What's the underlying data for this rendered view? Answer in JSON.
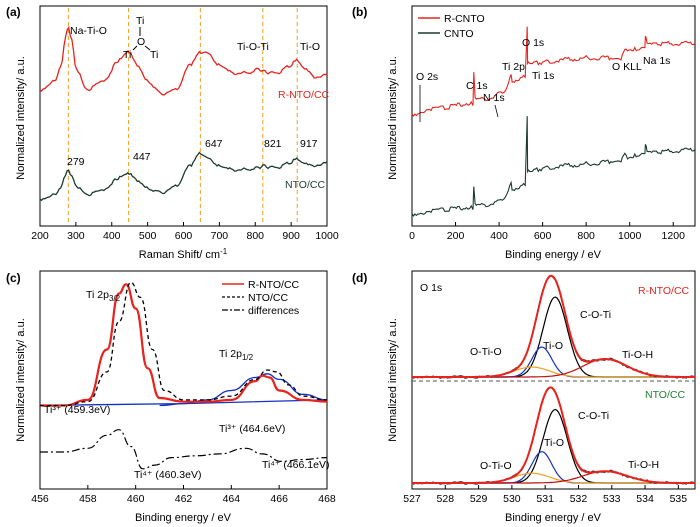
{
  "colors": {
    "red": "#e8231d",
    "dark": "#1c3a2e",
    "orange": "#f0a020",
    "blue": "#1830c0",
    "lightred": "#ff4040",
    "darkred": "#c01010"
  },
  "panels": {
    "a": "(a)",
    "b": "(b)",
    "c": "(c)",
    "d": "(d)"
  },
  "chart_data": [
    {
      "panel": "(a)",
      "type": "line",
      "xlabel": "Raman Shift/ cm",
      "xlabel_sup": "-1",
      "ylabel": "Normalized intensity/ a.u.",
      "xlim": [
        200,
        1000
      ],
      "xticks": [
        "200",
        "300",
        "400",
        "500",
        "600",
        "700",
        "800",
        "900",
        "1000"
      ],
      "xtick_values": [
        200,
        300,
        400,
        500,
        600,
        700,
        800,
        900,
        1000
      ],
      "vlines": [
        279,
        447,
        647,
        821,
        917
      ],
      "peak_labels": [
        "279",
        "447",
        "647",
        "821",
        "917"
      ],
      "bond_labels": {
        "na_ti_o": "Na-Ti-O",
        "ti_top": "Ti",
        "o_mid": "O",
        "ti_left": "Ti",
        "ti_right": "Ti",
        "ti_o_ti": "Ti-O-Ti",
        "ti_o": "Ti-O"
      },
      "series": [
        {
          "name": "R-NTO/CC",
          "color": "#e8231d",
          "x": [
            200,
            240,
            260,
            272,
            279,
            288,
            300,
            330,
            380,
            420,
            447,
            470,
            500,
            540,
            580,
            620,
            647,
            665,
            700,
            740,
            780,
            810,
            821,
            835,
            860,
            890,
            917,
            940,
            970,
            1000
          ],
          "y": [
            0.62,
            0.66,
            0.74,
            0.88,
            0.92,
            0.86,
            0.72,
            0.62,
            0.66,
            0.76,
            0.8,
            0.74,
            0.66,
            0.6,
            0.62,
            0.74,
            0.8,
            0.8,
            0.74,
            0.7,
            0.7,
            0.72,
            0.71,
            0.7,
            0.7,
            0.73,
            0.76,
            0.72,
            0.68,
            0.7
          ]
        },
        {
          "name": "NTO/CC",
          "color": "#1c3a2e",
          "x": [
            200,
            240,
            260,
            272,
            279,
            288,
            300,
            330,
            380,
            420,
            447,
            470,
            500,
            540,
            580,
            620,
            647,
            665,
            700,
            740,
            780,
            810,
            821,
            835,
            860,
            890,
            917,
            940,
            970,
            1000
          ],
          "y": [
            0.1,
            0.12,
            0.16,
            0.22,
            0.24,
            0.21,
            0.16,
            0.12,
            0.14,
            0.2,
            0.22,
            0.19,
            0.15,
            0.13,
            0.16,
            0.26,
            0.32,
            0.3,
            0.26,
            0.24,
            0.24,
            0.25,
            0.26,
            0.25,
            0.25,
            0.27,
            0.29,
            0.27,
            0.26,
            0.28
          ]
        }
      ]
    },
    {
      "panel": "(b)",
      "type": "line",
      "xlabel": "Binding energy / eV",
      "ylabel": "Normalized intensity/ a.u.",
      "xlim": [
        0,
        1300
      ],
      "xticks": [
        "0",
        "200",
        "400",
        "600",
        "800",
        "1000",
        "1200"
      ],
      "xtick_values": [
        0,
        200,
        400,
        600,
        800,
        1000,
        1200
      ],
      "peak_labels": {
        "o2s": "O 2s",
        "c1s": "C 1s",
        "n1s": "N 1s",
        "ti2p": "Ti 2p",
        "o1s": "O 1s",
        "ti1s": "Ti 1s",
        "okll": "O KLL",
        "na1s": "Na 1s"
      },
      "series": [
        {
          "name": "R-CNTO",
          "color": "#e8231d",
          "x": [
            0,
            20,
            60,
            150,
            250,
            280,
            284,
            290,
            300,
            380,
            400,
            430,
            455,
            460,
            470,
            520,
            529,
            531,
            540,
            600,
            700,
            800,
            900,
            960,
            978,
            990,
            1030,
            1070,
            1072,
            1080,
            1150,
            1300
          ],
          "y": [
            0.5,
            0.5,
            0.52,
            0.53,
            0.55,
            0.55,
            0.7,
            0.57,
            0.57,
            0.58,
            0.6,
            0.61,
            0.7,
            0.66,
            0.66,
            0.68,
            0.93,
            0.74,
            0.74,
            0.75,
            0.76,
            0.77,
            0.77,
            0.77,
            0.82,
            0.81,
            0.81,
            0.82,
            0.88,
            0.83,
            0.84,
            0.84
          ]
        },
        {
          "name": "CNTO",
          "color": "#1c3a2e",
          "x": [
            0,
            20,
            60,
            150,
            250,
            280,
            284,
            290,
            300,
            380,
            400,
            430,
            455,
            460,
            470,
            520,
            529,
            531,
            540,
            600,
            700,
            800,
            900,
            960,
            978,
            990,
            1030,
            1070,
            1072,
            1080,
            1150,
            1300
          ],
          "y": [
            0.02,
            0.02,
            0.03,
            0.04,
            0.05,
            0.05,
            0.15,
            0.06,
            0.06,
            0.07,
            0.08,
            0.1,
            0.18,
            0.14,
            0.14,
            0.16,
            0.5,
            0.22,
            0.22,
            0.24,
            0.25,
            0.26,
            0.27,
            0.28,
            0.32,
            0.29,
            0.3,
            0.31,
            0.36,
            0.31,
            0.32,
            0.33
          ]
        }
      ],
      "legend": [
        "R-CNTO",
        "CNTO"
      ]
    },
    {
      "panel": "(c)",
      "type": "line",
      "xlabel": "Binding energy / eV",
      "ylabel": "Normalized intensity/ a.u.",
      "xlim": [
        456,
        468
      ],
      "xticks": [
        "456",
        "458",
        "460",
        "462",
        "464",
        "466",
        "468"
      ],
      "xtick_values": [
        456,
        458,
        460,
        462,
        464,
        466,
        468
      ],
      "legend": [
        "R-NTO/CC",
        "NTO/CC",
        "differences"
      ],
      "peak_labels": {
        "ti2p32": "Ti 2p",
        "ti2p32_sub": "3/2",
        "ti2p12": "Ti 2p",
        "ti2p12_sub": "1/2"
      },
      "difference_labels": [
        "Ti³⁺ (459.3eV)",
        "Ti⁴⁺ (460.3eV)",
        "Ti³⁺ (464.6eV)",
        "Ti⁴⁺ (466.1eV)"
      ],
      "series": [
        {
          "name": "R-NTO/CC",
          "color": "#e8231d",
          "x": [
            456,
            457,
            458,
            458.8,
            459.3,
            459.6,
            460,
            460.5,
            461,
            462,
            463,
            464,
            465,
            465.3,
            465.6,
            466,
            467,
            468
          ],
          "y": [
            0.3,
            0.3,
            0.33,
            0.6,
            0.9,
            0.95,
            0.82,
            0.5,
            0.34,
            0.32,
            0.32,
            0.33,
            0.43,
            0.46,
            0.45,
            0.38,
            0.33,
            0.32
          ]
        },
        {
          "name": "NTO/CC",
          "color": "#000000",
          "x": [
            456,
            457,
            458,
            458.8,
            459.3,
            459.8,
            460.2,
            460.7,
            461.2,
            462,
            463,
            464,
            465,
            465.5,
            465.9,
            466.4,
            467,
            468
          ],
          "y": [
            0.3,
            0.3,
            0.32,
            0.48,
            0.75,
            0.96,
            0.88,
            0.6,
            0.38,
            0.33,
            0.33,
            0.35,
            0.44,
            0.49,
            0.48,
            0.41,
            0.35,
            0.33
          ]
        },
        {
          "name": "differences",
          "color": "#000000",
          "x": [
            456,
            457,
            458,
            458.8,
            459.3,
            459.8,
            460.3,
            460.8,
            461.5,
            462.5,
            463.5,
            464.6,
            465.3,
            466.1,
            467,
            468
          ],
          "y": [
            0.05,
            0.05,
            0.07,
            0.14,
            0.17,
            0.08,
            -0.04,
            -0.02,
            0.02,
            0.03,
            0.04,
            0.07,
            0.04,
            0.0,
            0.01,
            0.02
          ]
        },
        {
          "name": "background",
          "color": "#1830c0",
          "x": [
            456,
            468
          ],
          "y": [
            0.3,
            0.3
          ]
        }
      ]
    },
    {
      "panel": "(d)",
      "type": "line",
      "xlabel": "Binding energy / eV",
      "ylabel": "Normalized intensity/ a.u.",
      "xlim": [
        527,
        535.5
      ],
      "xticks": [
        "527",
        "528",
        "529",
        "530",
        "531",
        "532",
        "533",
        "534",
        "535"
      ],
      "xtick_values": [
        527,
        528,
        529,
        530,
        531,
        532,
        533,
        534,
        535
      ],
      "region_label": "O 1s",
      "top": {
        "name": "R-NTO/CC",
        "labels": [
          "C-O-Ti",
          "O-Ti-O",
          "Ti-O",
          "Ti-O-H"
        ]
      },
      "bottom": {
        "name": "NTO/CC",
        "labels": [
          "C-O-Ti",
          "Ti-O",
          "O-Ti-O",
          "Ti-O-H"
        ]
      },
      "components": [
        {
          "name": "C-O-Ti",
          "center": 531.3,
          "width": 0.55,
          "amp_top": 0.8,
          "amp_bottom": 0.75
        },
        {
          "name": "Ti-O",
          "center": 530.9,
          "width": 0.45,
          "amp_top": 0.3,
          "amp_bottom": 0.32
        },
        {
          "name": "O-Ti-O",
          "center": 530.6,
          "width": 0.8,
          "amp_top": 0.1,
          "amp_bottom": 0.1
        },
        {
          "name": "Ti-O-H",
          "center": 532.8,
          "width": 1.0,
          "amp_top": 0.18,
          "amp_bottom": 0.12
        }
      ]
    }
  ]
}
